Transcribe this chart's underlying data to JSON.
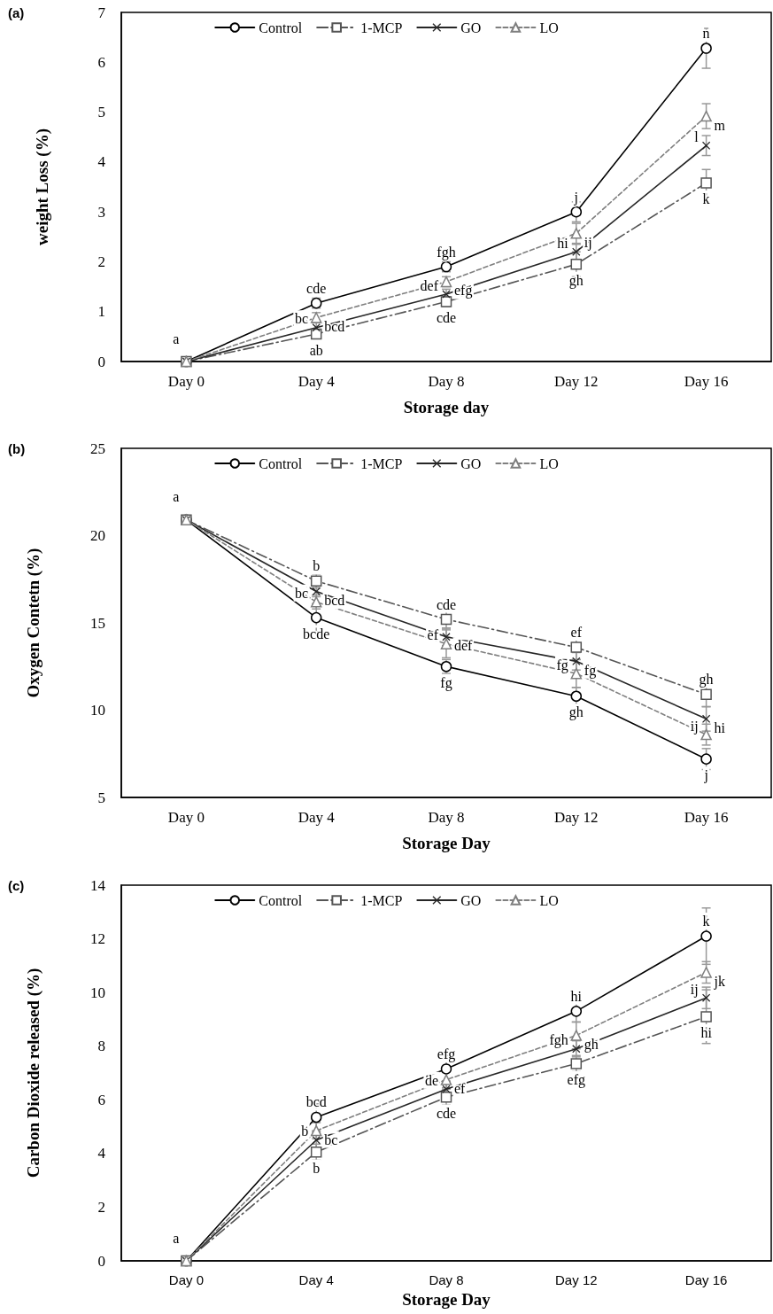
{
  "chart_data": [
    {
      "type": "line",
      "title": "(a)",
      "xlabel": "Storage day",
      "ylabel": "weight Loss (%)",
      "categories": [
        "Day 0",
        "Day 4",
        "Day 8",
        "Day 12",
        "Day 16"
      ],
      "ylim": [
        0,
        7
      ],
      "yticks": [
        0,
        1,
        2,
        3,
        4,
        5,
        6,
        7
      ],
      "grid": false,
      "legend": "top",
      "series": [
        {
          "name": "Control",
          "color": "#000000",
          "marker": "circle",
          "line_style": "solid",
          "values": [
            0,
            1.17,
            1.9,
            3.0,
            6.28
          ],
          "errors": [
            null,
            0.1,
            0.1,
            0.2,
            0.4
          ]
        },
        {
          "name": "1-MCP",
          "color": "#555555",
          "marker": "square",
          "line_style": "dashdot",
          "values": [
            0,
            0.55,
            1.2,
            1.95,
            3.58
          ],
          "errors": [
            null,
            0.08,
            0.1,
            0.25,
            0.27
          ]
        },
        {
          "name": "GO",
          "color": "#262626",
          "marker": "cross",
          "line_style": "solid",
          "values": [
            0,
            0.68,
            1.35,
            2.2,
            4.33
          ],
          "errors": [
            null,
            0.1,
            0.1,
            0.15,
            0.2
          ]
        },
        {
          "name": "LO",
          "color": "#7f7f7f",
          "marker": "triangle",
          "line_style": "dashed",
          "values": [
            0,
            0.88,
            1.6,
            2.57,
            4.92
          ],
          "errors": [
            null,
            0.1,
            0.1,
            0.2,
            0.25
          ]
        }
      ],
      "annotations": [
        {
          "text": "a",
          "x": "Day 0",
          "y": 0
        },
        {
          "text": "cde",
          "x": "Day 4",
          "y": 1.17
        },
        {
          "text": "bcd",
          "x": "Day 4",
          "y": 0.88
        },
        {
          "text": "bc",
          "x": "Day 4",
          "y": 0.68
        },
        {
          "text": "ab",
          "x": "Day 4",
          "y": 0.55
        },
        {
          "text": "fgh",
          "x": "Day 8",
          "y": 1.9
        },
        {
          "text": "efg",
          "x": "Day 8",
          "y": 1.6
        },
        {
          "text": "def",
          "x": "Day 8",
          "y": 1.35
        },
        {
          "text": "cde",
          "x": "Day 8",
          "y": 1.2
        },
        {
          "text": "j",
          "x": "Day 12",
          "y": 3.0
        },
        {
          "text": "ij",
          "x": "Day 12",
          "y": 2.57
        },
        {
          "text": "hi",
          "x": "Day 12",
          "y": 2.2
        },
        {
          "text": "gh",
          "x": "Day 12",
          "y": 1.95
        },
        {
          "text": "n",
          "x": "Day 16",
          "y": 6.28
        },
        {
          "text": "m",
          "x": "Day 16",
          "y": 4.92
        },
        {
          "text": "l",
          "x": "Day 16",
          "y": 4.33
        },
        {
          "text": "k",
          "x": "Day 16",
          "y": 3.58
        }
      ]
    },
    {
      "type": "line",
      "title": "(b)",
      "xlabel": "Storage Day",
      "ylabel": "Oxygen Contetn (%)",
      "categories": [
        "Day 0",
        "Day 4",
        "Day 8",
        "Day 12",
        "Day 16"
      ],
      "ylim": [
        5,
        25
      ],
      "yticks": [
        5,
        10,
        15,
        20,
        25
      ],
      "grid": false,
      "legend": "top",
      "series": [
        {
          "name": "Control",
          "color": "#000000",
          "marker": "circle",
          "line_style": "solid",
          "values": [
            20.9,
            15.3,
            12.5,
            10.8,
            7.2
          ],
          "errors": [
            null,
            0.8,
            0.4,
            0.5,
            0.6
          ]
        },
        {
          "name": "1-MCP",
          "color": "#555555",
          "marker": "square",
          "line_style": "dashdot",
          "values": [
            20.9,
            17.4,
            15.2,
            13.6,
            10.9
          ],
          "errors": [
            null,
            0.4,
            0.5,
            0.7,
            0.7
          ]
        },
        {
          "name": "GO",
          "color": "#262626",
          "marker": "cross",
          "line_style": "solid",
          "values": [
            20.9,
            16.8,
            14.2,
            12.8,
            9.5
          ],
          "errors": [
            null,
            0.3,
            0.5,
            0.5,
            0.7
          ]
        },
        {
          "name": "LO",
          "color": "#7f7f7f",
          "marker": "triangle",
          "line_style": "dashed",
          "values": [
            20.9,
            16.2,
            13.8,
            12.1,
            8.6
          ],
          "errors": [
            null,
            0.4,
            0.8,
            0.8,
            0.6
          ]
        }
      ],
      "annotations": [
        {
          "text": "a",
          "x": "Day 0",
          "y": 20.9
        },
        {
          "text": "b",
          "x": "Day 4",
          "y": 17.4
        },
        {
          "text": "bcd",
          "x": "Day 4",
          "y": 16.8
        },
        {
          "text": "bc",
          "x": "Day 4",
          "y": 16.2
        },
        {
          "text": "bcde",
          "x": "Day 4",
          "y": 15.3
        },
        {
          "text": "cde",
          "x": "Day 8",
          "y": 15.2
        },
        {
          "text": "def",
          "x": "Day 8",
          "y": 14.2
        },
        {
          "text": "ef",
          "x": "Day 8",
          "y": 13.8
        },
        {
          "text": "fg",
          "x": "Day 8",
          "y": 12.5
        },
        {
          "text": "ef",
          "x": "Day 12",
          "y": 13.6
        },
        {
          "text": "fg",
          "x": "Day 12",
          "y": 12.8
        },
        {
          "text": "fg",
          "x": "Day 12",
          "y": 12.1
        },
        {
          "text": "gh",
          "x": "Day 12",
          "y": 10.8
        },
        {
          "text": "gh",
          "x": "Day 16",
          "y": 10.9
        },
        {
          "text": "hi",
          "x": "Day 16",
          "y": 9.5
        },
        {
          "text": "ij",
          "x": "Day 16",
          "y": 8.6
        },
        {
          "text": "j",
          "x": "Day 16",
          "y": 7.2
        }
      ]
    },
    {
      "type": "line",
      "title": "(c)",
      "xlabel": "Storage Day",
      "ylabel": "Carbon Dioxide released (%)",
      "categories": [
        "Day 0",
        "Day 4",
        "Day 8",
        "Day 12",
        "Day 16"
      ],
      "ylim": [
        0,
        14
      ],
      "yticks": [
        0,
        2,
        4,
        6,
        8,
        10,
        12,
        14
      ],
      "grid": false,
      "legend": "top",
      "series": [
        {
          "name": "Control",
          "color": "#000000",
          "marker": "circle",
          "line_style": "solid",
          "values": [
            0,
            5.35,
            7.15,
            9.3,
            12.1
          ],
          "errors": [
            null,
            0.5,
            0.5,
            0.4,
            1.05
          ]
        },
        {
          "name": "1-MCP",
          "color": "#555555",
          "marker": "square",
          "line_style": "dashdot",
          "values": [
            0,
            4.05,
            6.1,
            7.35,
            9.1
          ],
          "errors": [
            null,
            0.3,
            0.3,
            0.3,
            1.0
          ]
        },
        {
          "name": "GO",
          "color": "#262626",
          "marker": "cross",
          "line_style": "solid",
          "values": [
            0,
            4.5,
            6.4,
            7.9,
            9.8
          ],
          "errors": [
            null,
            0.3,
            0.3,
            0.3,
            0.4
          ]
        },
        {
          "name": "LO",
          "color": "#7f7f7f",
          "marker": "triangle",
          "line_style": "dashed",
          "values": [
            0,
            4.85,
            6.75,
            8.4,
            10.75
          ],
          "errors": [
            null,
            0.3,
            0.3,
            0.5,
            0.4
          ]
        }
      ],
      "annotations": [
        {
          "text": "a",
          "x": "Day 0",
          "y": 0
        },
        {
          "text": "bcd",
          "x": "Day 4",
          "y": 5.35
        },
        {
          "text": "bc",
          "x": "Day 4",
          "y": 4.85
        },
        {
          "text": "b",
          "x": "Day 4",
          "y": 4.5
        },
        {
          "text": "b",
          "x": "Day 4",
          "y": 4.05
        },
        {
          "text": "efg",
          "x": "Day 8",
          "y": 7.15
        },
        {
          "text": "ef",
          "x": "Day 8",
          "y": 6.75
        },
        {
          "text": "de",
          "x": "Day 8",
          "y": 6.4
        },
        {
          "text": "cde",
          "x": "Day 8",
          "y": 6.1
        },
        {
          "text": "hi",
          "x": "Day 12",
          "y": 9.3
        },
        {
          "text": "gh",
          "x": "Day 12",
          "y": 8.4
        },
        {
          "text": "fgh",
          "x": "Day 12",
          "y": 7.9
        },
        {
          "text": "efg",
          "x": "Day 12",
          "y": 7.35
        },
        {
          "text": "k",
          "x": "Day 16",
          "y": 12.1
        },
        {
          "text": "jk",
          "x": "Day 16",
          "y": 10.75
        },
        {
          "text": "ij",
          "x": "Day 16",
          "y": 9.8
        },
        {
          "text": "hi",
          "x": "Day 16",
          "y": 9.1
        }
      ]
    }
  ]
}
